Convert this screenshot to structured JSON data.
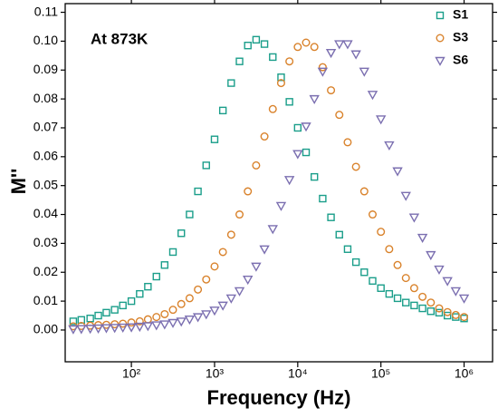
{
  "chart_data": {
    "type": "scatter",
    "annotation": "At 873K",
    "x_label": "Frequency (Hz)",
    "y_label": "M''",
    "x_scale": "log",
    "legend": "top-right",
    "x": [
      20,
      25,
      32,
      40,
      50,
      63,
      79,
      100,
      126,
      158,
      200,
      251,
      316,
      398,
      501,
      631,
      794,
      1000,
      1259,
      1585,
      1995,
      2512,
      3162,
      3981,
      5012,
      6310,
      7943,
      10000,
      12589,
      15849,
      19953,
      25119,
      31623,
      39811,
      50119,
      63096,
      79433,
      100000,
      125893,
      158489,
      199526,
      251189,
      316228,
      398107,
      501187,
      630957,
      794328,
      1000000
    ],
    "series": [
      {
        "name": "S1",
        "color": "#1a9e8a",
        "marker": "square",
        "values": [
          0.003,
          0.0035,
          0.004,
          0.005,
          0.006,
          0.007,
          0.0085,
          0.01,
          0.0125,
          0.015,
          0.0185,
          0.0225,
          0.027,
          0.0335,
          0.04,
          0.048,
          0.057,
          0.066,
          0.076,
          0.0855,
          0.093,
          0.0985,
          0.1005,
          0.099,
          0.0945,
          0.0875,
          0.079,
          0.07,
          0.0615,
          0.053,
          0.0455,
          0.039,
          0.033,
          0.028,
          0.0235,
          0.02,
          0.017,
          0.0145,
          0.0125,
          0.011,
          0.0095,
          0.0085,
          0.0075,
          0.0065,
          0.006,
          0.005,
          0.0045,
          0.004
        ]
      },
      {
        "name": "S3",
        "color": "#d9822b",
        "marker": "circle",
        "values": [
          0.0013,
          0.0014,
          0.0015,
          0.0017,
          0.0018,
          0.002,
          0.0022,
          0.0026,
          0.003,
          0.0037,
          0.0045,
          0.0055,
          0.007,
          0.009,
          0.011,
          0.014,
          0.0175,
          0.022,
          0.027,
          0.033,
          0.04,
          0.048,
          0.057,
          0.067,
          0.0765,
          0.0855,
          0.093,
          0.098,
          0.0995,
          0.098,
          0.091,
          0.083,
          0.0745,
          0.065,
          0.0565,
          0.048,
          0.04,
          0.034,
          0.028,
          0.0225,
          0.018,
          0.0145,
          0.0115,
          0.0095,
          0.0075,
          0.0062,
          0.0052,
          0.0045
        ]
      },
      {
        "name": "S6",
        "color": "#7b6fb0",
        "marker": "triangle-down",
        "values": [
          0.0003,
          0.0004,
          0.0005,
          0.0006,
          0.0007,
          0.0008,
          0.0009,
          0.001,
          0.0012,
          0.0014,
          0.0017,
          0.002,
          0.0025,
          0.003,
          0.0037,
          0.0045,
          0.0055,
          0.0068,
          0.0085,
          0.011,
          0.0135,
          0.0175,
          0.022,
          0.028,
          0.035,
          0.043,
          0.052,
          0.061,
          0.0705,
          0.08,
          0.0895,
          0.096,
          0.099,
          0.099,
          0.0955,
          0.0895,
          0.0815,
          0.073,
          0.064,
          0.055,
          0.0465,
          0.039,
          0.032,
          0.026,
          0.021,
          0.017,
          0.0135,
          0.011
        ]
      }
    ],
    "xlim": [
      16,
      2200000
    ],
    "xticks": [
      {
        "value": 100,
        "label": "10²"
      },
      {
        "value": 1000,
        "label": "10³"
      },
      {
        "value": 10000,
        "label": "10⁴"
      },
      {
        "value": 100000,
        "label": "10⁵"
      },
      {
        "value": 1000000,
        "label": "10⁶"
      }
    ],
    "ylim": [
      -0.011,
      0.113
    ],
    "yticks": [
      {
        "value": 0,
        "label": "0.00"
      },
      {
        "value": 0.01,
        "label": "0.01"
      },
      {
        "value": 0.02,
        "label": "0.02"
      },
      {
        "value": 0.03,
        "label": "0.03"
      },
      {
        "value": 0.04,
        "label": "0.04"
      },
      {
        "value": 0.05,
        "label": "0.05"
      },
      {
        "value": 0.06,
        "label": "0.06"
      },
      {
        "value": 0.07,
        "label": "0.07"
      },
      {
        "value": 0.08,
        "label": "0.08"
      },
      {
        "value": 0.09,
        "label": "0.09"
      },
      {
        "value": 0.1,
        "label": "0.10"
      },
      {
        "value": 0.11,
        "label": "0.11"
      }
    ]
  }
}
